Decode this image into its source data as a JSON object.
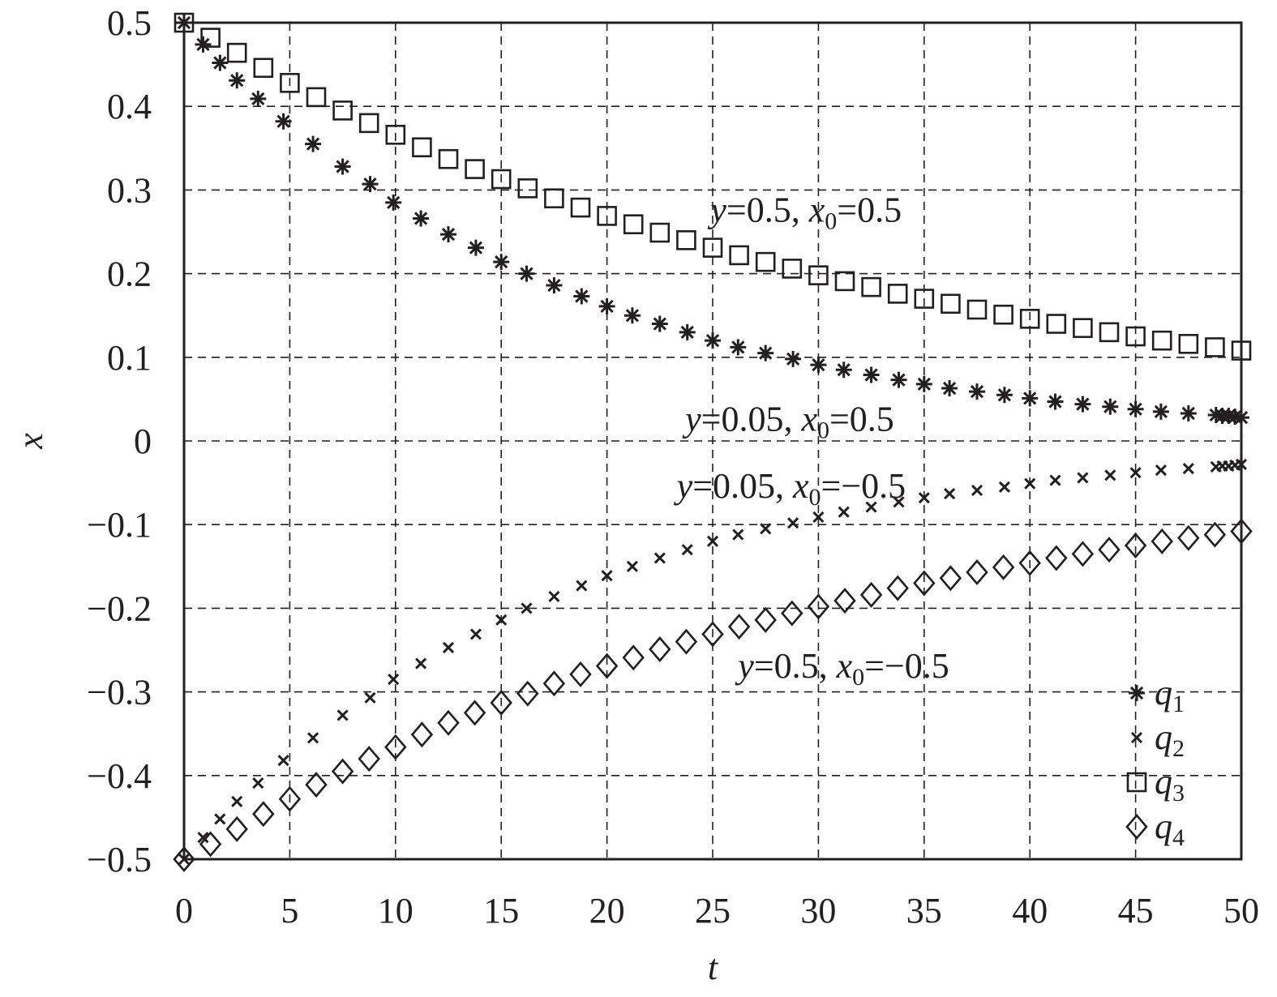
{
  "chart_data": {
    "type": "scatter",
    "xlabel": "t",
    "ylabel": "x",
    "xlim": [
      0,
      50
    ],
    "ylim": [
      -0.5,
      0.5
    ],
    "xticks": [
      0,
      5,
      10,
      15,
      20,
      25,
      30,
      35,
      40,
      45,
      50
    ],
    "xtick_labels": [
      "0",
      "5",
      "10",
      "15",
      "20",
      "25",
      "30",
      "35",
      "40",
      "45",
      "50"
    ],
    "yticks": [
      0.5,
      0.4,
      0.3,
      0.2,
      0.1,
      0,
      -0.1,
      -0.2,
      -0.3,
      -0.4,
      -0.5
    ],
    "ytick_labels": [
      "0.5",
      "0.4",
      "0.3",
      "0.2",
      "0.1",
      "0",
      "−0.1",
      "−0.2",
      "−0.3",
      "−0.4",
      "−0.5"
    ],
    "grid": true,
    "legend_position": "bottom-right",
    "color": "#231f20",
    "series": [
      {
        "name": "q1",
        "label_base": "q",
        "label_sub": "1",
        "marker": "asterisk",
        "x": [
          0,
          0.9,
          1.7,
          2.5,
          3.5,
          4.7,
          6.1,
          7.5,
          8.8,
          9.9,
          11.2,
          12.5,
          13.8,
          15.0,
          16.2,
          17.5,
          18.8,
          20.0,
          21.2,
          22.5,
          23.8,
          25.0,
          26.2,
          27.5,
          28.8,
          30.0,
          31.2,
          32.5,
          33.8,
          35.0,
          36.2,
          37.5,
          38.8,
          40.0,
          41.2,
          42.5,
          43.8,
          45.0,
          46.2,
          47.5,
          48.8,
          49.1,
          49.4,
          49.7,
          50.0
        ],
        "y": [
          0.5,
          0.474,
          0.452,
          0.431,
          0.409,
          0.382,
          0.355,
          0.328,
          0.307,
          0.285,
          0.266,
          0.247,
          0.231,
          0.214,
          0.2,
          0.186,
          0.173,
          0.161,
          0.15,
          0.14,
          0.13,
          0.12,
          0.112,
          0.105,
          0.098,
          0.091,
          0.085,
          0.079,
          0.073,
          0.068,
          0.063,
          0.059,
          0.055,
          0.051,
          0.047,
          0.044,
          0.041,
          0.038,
          0.035,
          0.033,
          0.031,
          0.03,
          0.03,
          0.029,
          0.028
        ]
      },
      {
        "name": "q2",
        "label_base": "q",
        "label_sub": "2",
        "marker": "cross",
        "x": [
          0,
          0.9,
          1.7,
          2.5,
          3.5,
          4.7,
          6.1,
          7.5,
          8.8,
          9.9,
          11.2,
          12.5,
          13.8,
          15.0,
          16.2,
          17.5,
          18.8,
          20.0,
          21.2,
          22.5,
          23.8,
          25.0,
          26.2,
          27.5,
          28.8,
          30.0,
          31.2,
          32.5,
          33.8,
          35.0,
          36.2,
          37.5,
          38.8,
          40.0,
          41.2,
          42.5,
          43.8,
          45.0,
          46.2,
          47.5,
          48.8,
          49.1,
          49.4,
          49.7,
          50.0
        ],
        "y": [
          -0.5,
          -0.474,
          -0.452,
          -0.431,
          -0.409,
          -0.382,
          -0.355,
          -0.328,
          -0.307,
          -0.285,
          -0.266,
          -0.247,
          -0.231,
          -0.214,
          -0.2,
          -0.186,
          -0.173,
          -0.161,
          -0.15,
          -0.14,
          -0.13,
          -0.12,
          -0.112,
          -0.105,
          -0.098,
          -0.091,
          -0.085,
          -0.079,
          -0.073,
          -0.068,
          -0.063,
          -0.059,
          -0.055,
          -0.051,
          -0.047,
          -0.044,
          -0.041,
          -0.038,
          -0.035,
          -0.033,
          -0.031,
          -0.03,
          -0.03,
          -0.029,
          -0.028
        ]
      },
      {
        "name": "q3",
        "label_base": "q",
        "label_sub": "3",
        "marker": "square",
        "x": [
          0,
          1.25,
          2.5,
          3.75,
          5.0,
          6.25,
          7.5,
          8.75,
          10.0,
          11.25,
          12.5,
          13.75,
          15.0,
          16.25,
          17.5,
          18.75,
          20.0,
          21.25,
          22.5,
          23.75,
          25.0,
          26.25,
          27.5,
          28.75,
          30.0,
          31.25,
          32.5,
          33.75,
          35.0,
          36.25,
          37.5,
          38.75,
          40.0,
          41.25,
          42.5,
          43.75,
          45.0,
          46.25,
          47.5,
          48.75,
          50.0
        ],
        "y": [
          0.5,
          0.482,
          0.464,
          0.446,
          0.428,
          0.411,
          0.395,
          0.38,
          0.366,
          0.351,
          0.337,
          0.325,
          0.313,
          0.302,
          0.29,
          0.279,
          0.269,
          0.259,
          0.249,
          0.24,
          0.231,
          0.222,
          0.214,
          0.206,
          0.198,
          0.191,
          0.184,
          0.176,
          0.17,
          0.164,
          0.157,
          0.151,
          0.146,
          0.14,
          0.135,
          0.13,
          0.125,
          0.12,
          0.116,
          0.112,
          0.108
        ]
      },
      {
        "name": "q4",
        "label_base": "q",
        "label_sub": "4",
        "marker": "diamond",
        "x": [
          0,
          1.25,
          2.5,
          3.75,
          5.0,
          6.25,
          7.5,
          8.75,
          10.0,
          11.25,
          12.5,
          13.75,
          15.0,
          16.25,
          17.5,
          18.75,
          20.0,
          21.25,
          22.5,
          23.75,
          25.0,
          26.25,
          27.5,
          28.75,
          30.0,
          31.25,
          32.5,
          33.75,
          35.0,
          36.25,
          37.5,
          38.75,
          40.0,
          41.25,
          42.5,
          43.75,
          45.0,
          46.25,
          47.5,
          48.75,
          50.0
        ],
        "y": [
          -0.5,
          -0.482,
          -0.464,
          -0.446,
          -0.428,
          -0.411,
          -0.395,
          -0.38,
          -0.366,
          -0.351,
          -0.337,
          -0.325,
          -0.313,
          -0.302,
          -0.29,
          -0.279,
          -0.269,
          -0.259,
          -0.249,
          -0.24,
          -0.231,
          -0.222,
          -0.214,
          -0.206,
          -0.198,
          -0.191,
          -0.184,
          -0.176,
          -0.17,
          -0.164,
          -0.157,
          -0.151,
          -0.146,
          -0.14,
          -0.135,
          -0.13,
          -0.125,
          -0.12,
          -0.116,
          -0.112,
          -0.108
        ]
      }
    ],
    "annotations": [
      {
        "parts": [
          {
            "t": "y",
            "i": true
          },
          {
            "t": "=0.5, "
          },
          {
            "t": "x",
            "i": true
          },
          {
            "t": "0",
            "sub": true
          },
          {
            "t": "=0.5"
          }
        ],
        "x": 24.9,
        "y": 0.262
      },
      {
        "parts": [
          {
            "t": "y",
            "i": true
          },
          {
            "t": "=0.05, "
          },
          {
            "t": "x",
            "i": true
          },
          {
            "t": "0",
            "sub": true
          },
          {
            "t": "=0.5"
          }
        ],
        "x": 23.7,
        "y": 0.012
      },
      {
        "parts": [
          {
            "t": "y",
            "i": true
          },
          {
            "t": "=0.05, "
          },
          {
            "t": "x",
            "i": true
          },
          {
            "t": "0",
            "sub": true
          },
          {
            "t": "=−0.5"
          }
        ],
        "x": 23.3,
        "y": -0.068
      },
      {
        "parts": [
          {
            "t": "y",
            "i": true
          },
          {
            "t": "=0.5, "
          },
          {
            "t": "x",
            "i": true
          },
          {
            "t": "0",
            "sub": true
          },
          {
            "t": "=−0.5"
          }
        ],
        "x": 26.2,
        "y": -0.283
      }
    ]
  }
}
